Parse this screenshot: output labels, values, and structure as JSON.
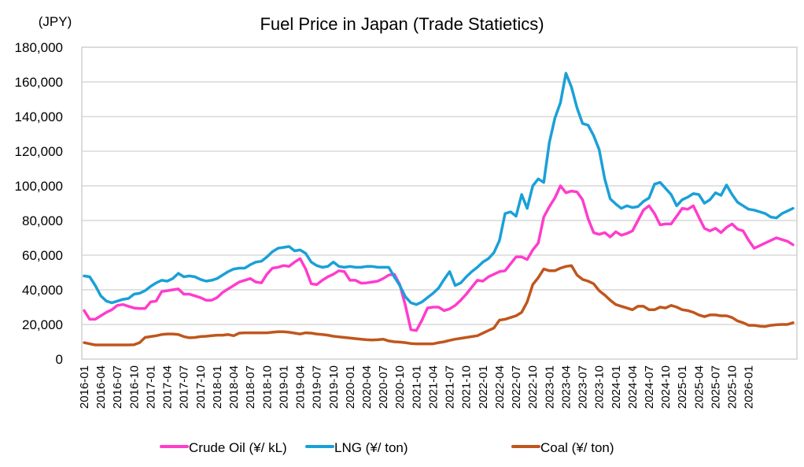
{
  "chart_data": {
    "type": "line",
    "title": "Fuel Price in Japan (Trade Statietics)",
    "ylabel": "(JPY)",
    "xlabel": "",
    "ylim": [
      0,
      180000
    ],
    "yticks": [
      0,
      20000,
      40000,
      60000,
      80000,
      100000,
      120000,
      140000,
      160000,
      180000
    ],
    "ytick_labels": [
      "0",
      "20,000",
      "40,000",
      "60,000",
      "80,000",
      "100,000",
      "120,000",
      "140,000",
      "160,000",
      "180,000"
    ],
    "grid": true,
    "legend_position": "bottom",
    "x_start": "2016-01",
    "x_tick_labels": [
      "2016-01",
      "2016-04",
      "2016-07",
      "2016-10",
      "2017-01",
      "2017-04",
      "2017-07",
      "2017-10",
      "2018-01",
      "2018-04",
      "2018-07",
      "2018-10",
      "2019-01",
      "2019-04",
      "2019-07",
      "2019-10",
      "2020-01",
      "2020-04",
      "2020-07",
      "2020-10",
      "2021-01",
      "2021-04",
      "2021-07",
      "2021-10",
      "2022-01",
      "2022-04",
      "2022-07",
      "2022-10",
      "2023-01",
      "2023-04",
      "2023-07",
      "2023-10",
      "2024-01",
      "2024-04",
      "2024-07",
      "2024-10",
      "2025-01",
      "2025-04",
      "2025-07",
      "2025-10",
      "2026-01"
    ],
    "series": [
      {
        "name": "Crude Oil (¥/ kL)",
        "color": "#ff3ccc",
        "values": [
          28000,
          23000,
          23000,
          25000,
          27000,
          28500,
          31000,
          31500,
          30500,
          29500,
          29200,
          29200,
          33000,
          33500,
          39000,
          39500,
          40000,
          40500,
          37500,
          37500,
          36500,
          35500,
          34000,
          34000,
          35500,
          38500,
          40500,
          42500,
          44500,
          45500,
          46500,
          44500,
          44000,
          49000,
          52500,
          53000,
          54000,
          53500,
          56000,
          58000,
          52000,
          43500,
          43000,
          45500,
          47500,
          49000,
          51000,
          50500,
          45500,
          45500,
          43800,
          44000,
          44500,
          45000,
          46500,
          48500,
          49000,
          43000,
          31000,
          17000,
          16500,
          22500,
          29500,
          30000,
          30000,
          28000,
          29000,
          31000,
          34000,
          37500,
          41500,
          45500,
          45000,
          47500,
          49000,
          50500,
          51000,
          55000,
          59000,
          59000,
          57500,
          63000,
          67000,
          82000,
          88000,
          93000,
          100000,
          96000,
          97000,
          96500,
          92000,
          81000,
          73000,
          72000,
          73000,
          70500,
          73500,
          71500,
          72500,
          74000,
          80000,
          86000,
          88500,
          84000,
          77500,
          78000,
          78000,
          82500,
          87000,
          86500,
          88500,
          82000,
          75500,
          74000,
          75500,
          73000,
          76000,
          78000,
          75000,
          74000,
          68500,
          64000,
          65500,
          67000,
          68500,
          70000,
          69000,
          68000,
          66000
        ]
      },
      {
        "name": "LNG (¥/ ton)",
        "color": "#1aa0d8",
        "values": [
          48000,
          47500,
          42500,
          36500,
          33500,
          32500,
          33500,
          34500,
          35000,
          37500,
          38000,
          39500,
          42000,
          44000,
          45500,
          45000,
          46500,
          49500,
          47500,
          48000,
          47500,
          46000,
          45000,
          45500,
          46500,
          48500,
          50500,
          52000,
          52500,
          52500,
          54500,
          56000,
          56500,
          59000,
          62000,
          64000,
          64500,
          65000,
          62500,
          63000,
          61000,
          56000,
          54000,
          53000,
          53500,
          56000,
          53500,
          53000,
          53500,
          53000,
          53000,
          53500,
          53500,
          53000,
          53000,
          53000,
          47500,
          42500,
          36000,
          32500,
          31500,
          33000,
          35500,
          38000,
          41000,
          46000,
          50500,
          42500,
          44000,
          47500,
          50500,
          53000,
          56000,
          58000,
          61500,
          68500,
          84000,
          85000,
          82500,
          95000,
          87000,
          100000,
          104000,
          102000,
          125000,
          139000,
          148000,
          165000,
          157000,
          145000,
          136000,
          135000,
          129000,
          121000,
          104000,
          92500,
          89500,
          87000,
          88500,
          87500,
          88000,
          91000,
          93000,
          101000,
          102000,
          98500,
          95000,
          88500,
          92000,
          93500,
          95500,
          95000,
          90000,
          92000,
          96000,
          94500,
          100500,
          95000,
          90500,
          88500,
          86500,
          86000,
          85000,
          84000,
          82000,
          81500,
          84000,
          85500,
          87000
        ]
      },
      {
        "name": "Coal (¥/ ton)",
        "color": "#c0561c",
        "values": [
          9500,
          8800,
          8200,
          8200,
          8200,
          8200,
          8200,
          8200,
          8200,
          8300,
          9500,
          12500,
          13000,
          13500,
          14200,
          14500,
          14500,
          14200,
          13000,
          12300,
          12500,
          13000,
          13200,
          13500,
          13800,
          13800,
          14200,
          13500,
          15000,
          15200,
          15200,
          15200,
          15200,
          15200,
          15500,
          15800,
          15800,
          15500,
          15000,
          14500,
          15200,
          15000,
          14500,
          14200,
          13800,
          13200,
          12800,
          12500,
          12200,
          11800,
          11500,
          11200,
          11000,
          11200,
          11500,
          10500,
          10000,
          9800,
          9500,
          9000,
          8800,
          8800,
          8800,
          8800,
          9500,
          10000,
          10800,
          11500,
          12000,
          12500,
          13000,
          13500,
          15000,
          16500,
          18000,
          22500,
          23000,
          24000,
          25000,
          27000,
          33000,
          43000,
          47000,
          52000,
          51000,
          51000,
          52500,
          53500,
          54000,
          48500,
          46000,
          45000,
          43500,
          39500,
          37000,
          34000,
          31500,
          30500,
          29500,
          28500,
          30500,
          30500,
          28500,
          28500,
          30000,
          29500,
          31000,
          30000,
          28500,
          28000,
          27000,
          25500,
          24500,
          25500,
          25500,
          25000,
          25000,
          24000,
          22000,
          21000,
          19500,
          19500,
          19000,
          18800,
          19500,
          19800,
          20000,
          20000,
          21000
        ]
      }
    ]
  }
}
